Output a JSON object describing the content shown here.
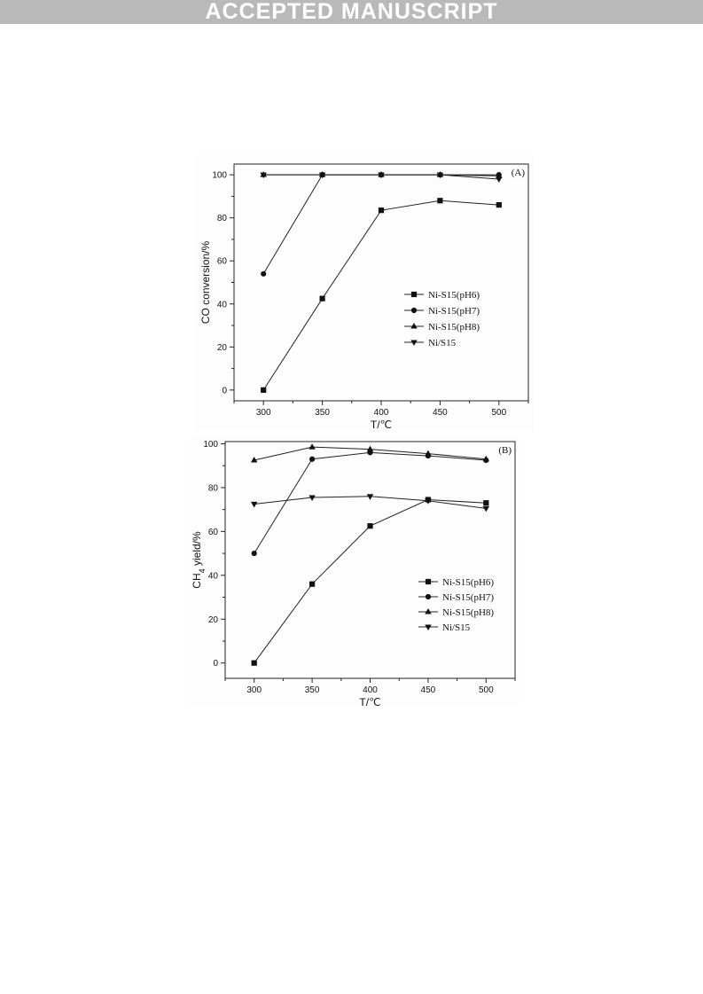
{
  "banner": {
    "text": "ACCEPTED MANUSCRIPT"
  },
  "chart_data": [
    {
      "type": "line",
      "panel_label": "(A)",
      "xlabel": "T/℃",
      "ylabel": "CO conversion/%",
      "xlim": [
        275,
        525
      ],
      "ylim": [
        -5,
        105
      ],
      "xticks": [
        300,
        350,
        400,
        450,
        500
      ],
      "yticks": [
        0,
        20,
        40,
        60,
        80,
        100
      ],
      "legend_position": "center-right",
      "grid": false,
      "series": [
        {
          "name": "Ni-S15(pH6)",
          "marker": "square",
          "x": [
            300,
            350,
            400,
            450,
            500
          ],
          "y": [
            0,
            42.5,
            83.5,
            88,
            86
          ]
        },
        {
          "name": "Ni-S15(pH7)",
          "marker": "circle",
          "x": [
            300,
            350,
            400,
            450,
            500
          ],
          "y": [
            54,
            100,
            100,
            100,
            100
          ]
        },
        {
          "name": "Ni-S15(pH8)",
          "marker": "triangle-up",
          "x": [
            300,
            350,
            400,
            450,
            500
          ],
          "y": [
            100,
            100,
            100,
            100,
            99.5
          ]
        },
        {
          "name": "Ni/S15",
          "marker": "triangle-down",
          "x": [
            300,
            350,
            400,
            450,
            500
          ],
          "y": [
            100,
            100,
            100,
            100,
            98
          ]
        }
      ]
    },
    {
      "type": "line",
      "panel_label": "(B)",
      "xlabel": "T/℃",
      "ylabel": "CH4 yield/%",
      "ylabel_main": "CH",
      "ylabel_sub": "4",
      "ylabel_tail": " yield/%",
      "xlim": [
        275,
        525
      ],
      "ylim": [
        -7,
        101
      ],
      "xticks": [
        300,
        350,
        400,
        450,
        500
      ],
      "yticks": [
        0,
        20,
        40,
        60,
        80,
        100
      ],
      "legend_position": "center-right",
      "grid": false,
      "series": [
        {
          "name": "Ni-S15(pH6)",
          "marker": "square",
          "x": [
            300,
            350,
            400,
            450,
            500
          ],
          "y": [
            0,
            36,
            62.5,
            74.5,
            73
          ]
        },
        {
          "name": "Ni-S15(pH7)",
          "marker": "circle",
          "x": [
            300,
            350,
            400,
            450,
            500
          ],
          "y": [
            50,
            93,
            96,
            94.5,
            92.5
          ]
        },
        {
          "name": "Ni-S15(pH8)",
          "marker": "triangle-up",
          "x": [
            300,
            350,
            400,
            450,
            500
          ],
          "y": [
            92.5,
            98.5,
            97.5,
            95.5,
            93
          ]
        },
        {
          "name": "Ni/S15",
          "marker": "triangle-down",
          "x": [
            300,
            350,
            400,
            450,
            500
          ],
          "y": [
            72.5,
            75.5,
            76,
            74,
            70.5
          ]
        }
      ]
    }
  ]
}
